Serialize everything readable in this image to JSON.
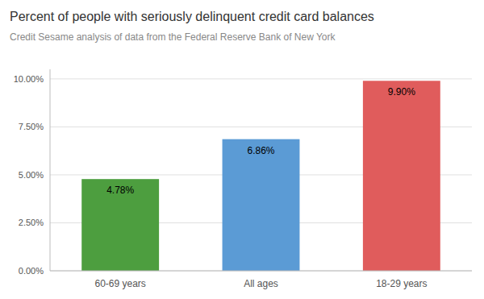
{
  "chart_data": {
    "type": "bar",
    "title": "Percent of people with seriously delinquent credit card balances",
    "subtitle": "Credit Sesame analysis of data from the Federal Reserve Bank of New York",
    "categories": [
      "60-69 years",
      "All ages",
      "18-29 years"
    ],
    "values": [
      4.78,
      6.86,
      9.9
    ],
    "value_labels": [
      "4.78%",
      "6.86%",
      "9.90%"
    ],
    "colors": [
      "#4d9e3f",
      "#5b9bd5",
      "#e05c5c"
    ],
    "ylim": [
      0,
      10.5
    ],
    "yticks": [
      {
        "value": 0,
        "label": "0.00%"
      },
      {
        "value": 2.5,
        "label": "2.50%"
      },
      {
        "value": 5,
        "label": "5.00%"
      },
      {
        "value": 7.5,
        "label": "7.50%"
      },
      {
        "value": 10,
        "label": "10.00%"
      }
    ],
    "grid": true,
    "data_labels": true
  }
}
